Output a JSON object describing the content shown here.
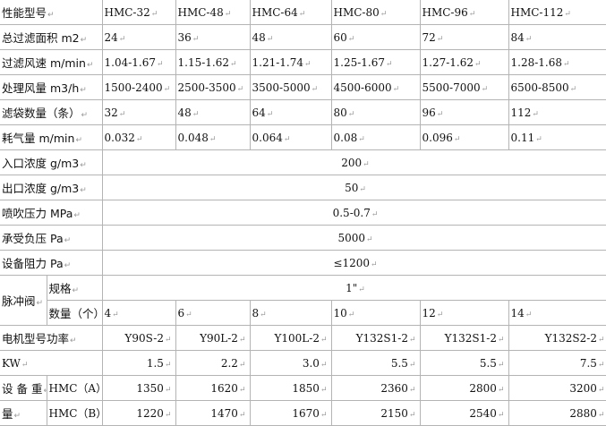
{
  "header": {
    "label": "性能型号",
    "models": [
      "HMC-32",
      "HMC-48",
      "HMC-64",
      "HMC-80",
      "HMC-96",
      "HMC-112"
    ]
  },
  "rows": [
    {
      "label": "总过滤面积 m2",
      "values": [
        "24",
        "36",
        "48",
        "60",
        "72",
        "84"
      ]
    },
    {
      "label": "过滤风速 m/min",
      "values": [
        "1.04-1.67",
        "1.15-1.62",
        "1.21-1.74",
        "1.25-1.67",
        "1.27-1.62",
        "1.28-1.68"
      ]
    },
    {
      "label": "处理风量 m3/h",
      "values": [
        "1500-2400",
        "2500-3500",
        "3500-5000",
        "4500-6000",
        "5500-7000",
        "6500-8500"
      ]
    },
    {
      "label": "滤袋数量（条）",
      "values": [
        "32",
        "48",
        "64",
        "80",
        "96",
        "112"
      ]
    },
    {
      "label": "耗气量 m/min",
      "values": [
        "0.032",
        "0.048",
        "0.064",
        "0.08",
        "0.096",
        "0.11"
      ]
    }
  ],
  "merged": [
    {
      "label": "入口浓度 g/m3",
      "value": "200"
    },
    {
      "label": "出口浓度 g/m3",
      "value": "50"
    },
    {
      "label": "喷吹压力 MPa",
      "value": "0.5-0.7"
    },
    {
      "label": "承受负压 Pa",
      "value": "5000"
    },
    {
      "label": "设备阻力 Pa",
      "value": "≤1200"
    }
  ],
  "valve": {
    "label": "脉冲阀",
    "spec_label": "规格",
    "spec_value": "1\"",
    "qty_label": "数量（个）",
    "qty": [
      "4",
      "6",
      "8",
      "10",
      "12",
      "14"
    ]
  },
  "motor": {
    "label": "电机型号功率",
    "models": [
      "Y90S-2",
      "Y90L-2",
      "Y100L-2",
      "Y132S1-2",
      "Y132S1-2",
      "Y132S2-2"
    ],
    "kw_label": "KW",
    "kw": [
      "1.5",
      "2.2",
      "3.0",
      "5.5",
      "5.5",
      "7.5"
    ]
  },
  "weight": {
    "label_1": "设 备 重",
    "label_2": "量",
    "a_label": "HMC（A）",
    "a": [
      "1350",
      "1620",
      "1850",
      "2360",
      "2800",
      "3200"
    ],
    "b_label": "HMC（B）",
    "b": [
      "1220",
      "1470",
      "1670",
      "2150",
      "2540",
      "2880"
    ]
  }
}
